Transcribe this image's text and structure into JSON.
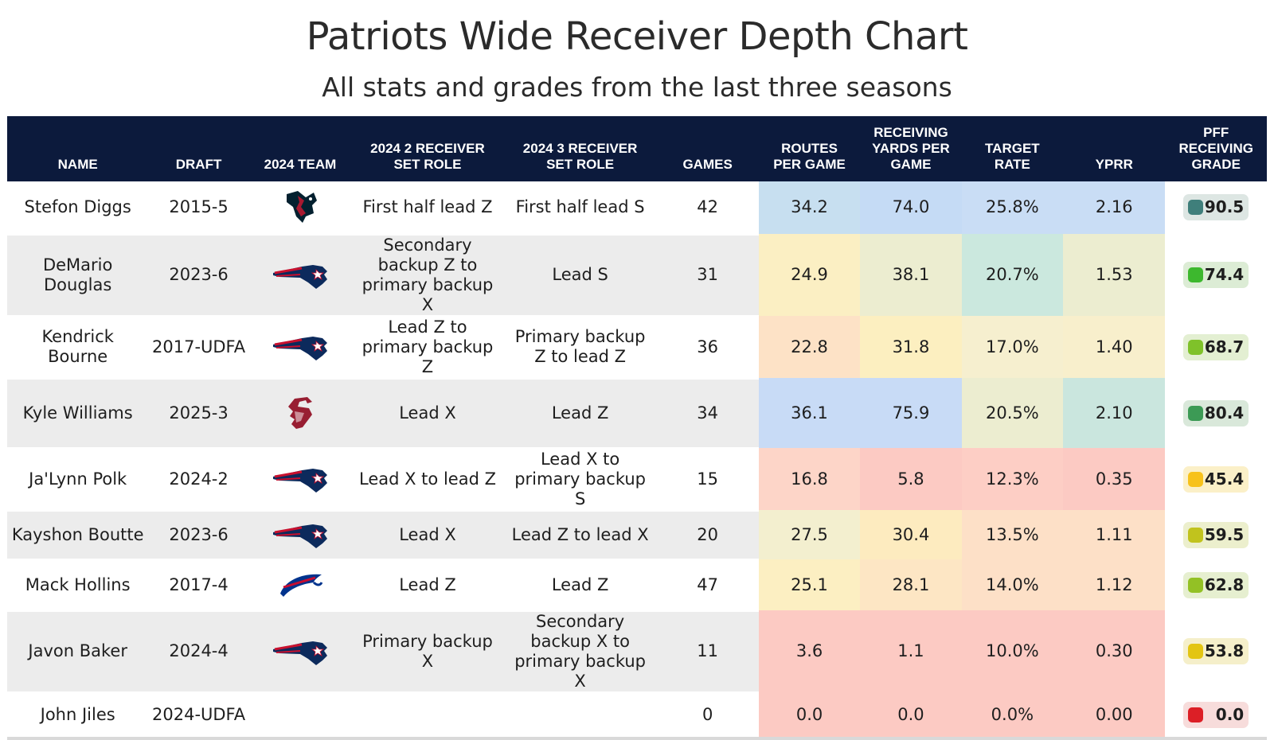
{
  "title": "Patriots Wide Receiver Depth Chart",
  "subtitle": "All stats and grades from the last three seasons",
  "chart_data": {
    "type": "table",
    "columns": [
      "NAME",
      "DRAFT",
      "2024 TEAM",
      "2024 2 RECEIVER SET ROLE",
      "2024 3 RECEIVER SET ROLE",
      "GAMES",
      "ROUTES PER GAME",
      "RECEIVING YARDS PER GAME",
      "TARGET RATE",
      "YPRR",
      "PFF RECEIVING GRADE"
    ],
    "rows": [
      {
        "name": "Stefon Diggs",
        "draft": "2015-5",
        "team_logo": "texans-logo",
        "role2": "First half lead Z",
        "role3": "First half lead S",
        "games": "42",
        "routes": "34.2",
        "ypg": "74.0",
        "target": "25.8%",
        "yprr": "2.16",
        "grade": "90.5",
        "colors": {
          "routes": "#c7dff0",
          "ypg": "#c5dbf5",
          "target": "#c9ddf5",
          "yprr": "#c9ddf5",
          "grade_bg": "#dde6e3",
          "grade_sq": "#3f7f7b"
        }
      },
      {
        "name": "DeMario Douglas",
        "draft": "2023-6",
        "team_logo": "patriots-logo",
        "role2": "Secondary backup Z to primary backup X",
        "role3": "Lead S",
        "games": "31",
        "routes": "24.9",
        "ypg": "38.1",
        "target": "20.7%",
        "yprr": "1.53",
        "grade": "74.4",
        "colors": {
          "routes": "#fbefc3",
          "ypg": "#ecedd0",
          "target": "#cbe8de",
          "yprr": "#ecedd0",
          "grade_bg": "#dcecd5",
          "grade_sq": "#3db82e"
        }
      },
      {
        "name": "Kendrick Bourne",
        "draft": "2017-UDFA",
        "team_logo": "patriots-logo",
        "role2": "Lead Z to primary backup Z",
        "role3": "Primary backup Z to lead Z",
        "games": "36",
        "routes": "22.8",
        "ypg": "31.8",
        "target": "17.0%",
        "yprr": "1.40",
        "grade": "68.7",
        "colors": {
          "routes": "#fde2c6",
          "ypg": "#fcefc0",
          "target": "#f6efcf",
          "yprr": "#f8efcc",
          "grade_bg": "#e3efd2",
          "grade_sq": "#7fc22a"
        }
      },
      {
        "name": "Kyle Williams",
        "draft": "2025-3",
        "team_logo": "wsu-logo",
        "role2": "Lead X",
        "role3": "Lead Z",
        "games": "34",
        "routes": "36.1",
        "ypg": "75.9",
        "target": "20.5%",
        "yprr": "2.10",
        "grade": "80.4",
        "colors": {
          "routes": "#c8dbf6",
          "ypg": "#c8dbf6",
          "target": "#ecedd0",
          "yprr": "#cae6de",
          "grade_bg": "#d9e8da",
          "grade_sq": "#3c9a55"
        }
      },
      {
        "name": "Ja'Lynn Polk",
        "draft": "2024-2",
        "team_logo": "patriots-logo",
        "role2": "Lead X to lead Z",
        "role3": "Lead X to primary backup S",
        "games": "15",
        "routes": "16.8",
        "ypg": "5.8",
        "target": "12.3%",
        "yprr": "0.35",
        "grade": "45.4",
        "colors": {
          "routes": "#fdd5c8",
          "ypg": "#fccac3",
          "target": "#fdcec5",
          "yprr": "#fccac3",
          "grade_bg": "#fbf0c8",
          "grade_sq": "#f7c21b"
        }
      },
      {
        "name": "Kayshon Boutte",
        "draft": "2023-6",
        "team_logo": "patriots-logo",
        "role2": "Lead X",
        "role3": "Lead Z to lead X",
        "games": "20",
        "routes": "27.5",
        "ypg": "30.4",
        "target": "13.5%",
        "yprr": "1.11",
        "grade": "59.5",
        "colors": {
          "routes": "#f3efcf",
          "ypg": "#fdebbf",
          "target": "#fde0c7",
          "yprr": "#fde0c7",
          "grade_bg": "#ecefcd",
          "grade_sq": "#c1c31d"
        }
      },
      {
        "name": "Mack Hollins",
        "draft": "2017-4",
        "team_logo": "bills-logo",
        "role2": "Lead Z",
        "role3": "Lead Z",
        "games": "47",
        "routes": "25.1",
        "ypg": "28.1",
        "target": "14.0%",
        "yprr": "1.12",
        "grade": "62.8",
        "colors": {
          "routes": "#fcefc2",
          "ypg": "#fde6c4",
          "target": "#fde0c7",
          "yprr": "#fde0c7",
          "grade_bg": "#e6efd0",
          "grade_sq": "#93c125"
        }
      },
      {
        "name": "Javon Baker",
        "draft": "2024-4",
        "team_logo": "patriots-logo",
        "role2": "Primary backup X",
        "role3": "Secondary backup X to primary backup X",
        "games": "11",
        "routes": "3.6",
        "ypg": "1.1",
        "target": "10.0%",
        "yprr": "0.30",
        "grade": "53.8",
        "colors": {
          "routes": "#fccac3",
          "ypg": "#fccac3",
          "target": "#fccac3",
          "yprr": "#fccac3",
          "grade_bg": "#f5efca",
          "grade_sq": "#e3c512"
        }
      },
      {
        "name": "John Jiles",
        "draft": "2024-UDFA",
        "team_logo": "",
        "role2": "",
        "role3": "",
        "games": "0",
        "routes": "0.0",
        "ypg": "0.0",
        "target": "0.0%",
        "yprr": "0.00",
        "grade": "0.0",
        "colors": {
          "routes": "#fccac3",
          "ypg": "#fccac3",
          "target": "#fccac3",
          "yprr": "#fccac3",
          "grade_bg": "#f7dcdb",
          "grade_sq": "#dc1f26"
        }
      }
    ]
  }
}
